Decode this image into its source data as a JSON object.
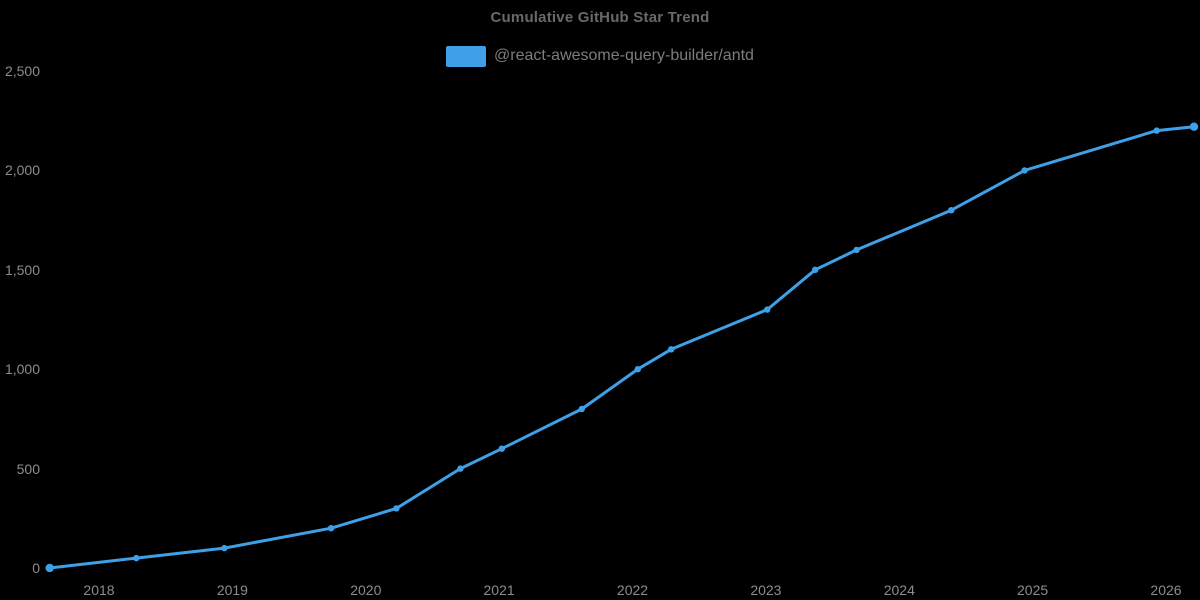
{
  "chart_data": {
    "type": "line",
    "title": "Cumulative GitHub Star Trend",
    "legend": {
      "label": "@react-awesome-query-builder/antd",
      "position": "top-center"
    },
    "x_axis": {
      "type": "time",
      "tick_labels": [
        "2018",
        "2019",
        "2020",
        "2021",
        "2022",
        "2023",
        "2024",
        "2025",
        "2026"
      ],
      "tick_values": [
        2018,
        2019,
        2020,
        2021,
        2022,
        2023,
        2024,
        2025,
        2026
      ],
      "range_years": [
        2017.55,
        2026.3
      ]
    },
    "y_axis": {
      "tick_labels": [
        "0",
        "500",
        "1,000",
        "1,500",
        "2,000",
        "2,500"
      ],
      "tick_values": [
        0,
        500,
        1000,
        1500,
        2000,
        2500
      ],
      "range": [
        0,
        2500
      ]
    },
    "grid": false,
    "legend_clickable": true,
    "series": [
      {
        "name": "@react-awesome-query-builder/antd",
        "color": "#3fa0e8",
        "marker": "circle",
        "points": [
          {
            "x": 2017.63,
            "y": 0
          },
          {
            "x": 2018.28,
            "y": 50
          },
          {
            "x": 2018.94,
            "y": 100
          },
          {
            "x": 2019.74,
            "y": 200
          },
          {
            "x": 2020.23,
            "y": 300
          },
          {
            "x": 2020.71,
            "y": 500
          },
          {
            "x": 2021.02,
            "y": 600
          },
          {
            "x": 2021.62,
            "y": 800
          },
          {
            "x": 2022.04,
            "y": 1000
          },
          {
            "x": 2022.29,
            "y": 1100
          },
          {
            "x": 2023.01,
            "y": 1300
          },
          {
            "x": 2023.37,
            "y": 1500
          },
          {
            "x": 2023.68,
            "y": 1600
          },
          {
            "x": 2024.39,
            "y": 1800
          },
          {
            "x": 2024.94,
            "y": 2000
          },
          {
            "x": 2025.93,
            "y": 2200
          },
          {
            "x": 2026.21,
            "y": 2220
          }
        ]
      }
    ],
    "colors": {
      "background": "#000000",
      "accent": "#3fa0e8",
      "title_text": "#696969",
      "legend_text": "#7d7d7d",
      "axis_text": "#8c8c8c"
    }
  }
}
